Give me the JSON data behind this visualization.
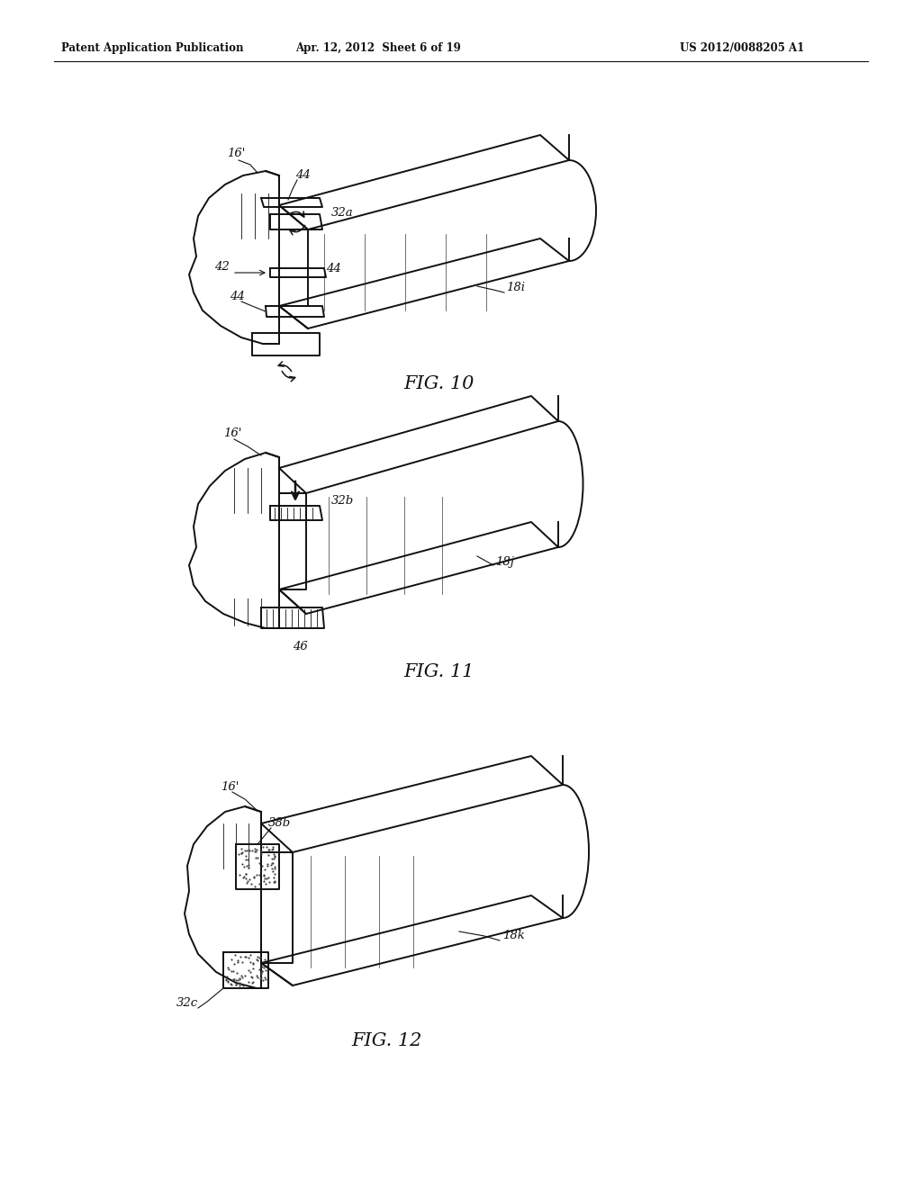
{
  "background_color": "#ffffff",
  "page_width": 10.24,
  "page_height": 13.2,
  "header_left": "Patent Application Publication",
  "header_center": "Apr. 12, 2012  Sheet 6 of 19",
  "header_right": "US 2012/0088205 A1",
  "fig10_label": "FIG. 10",
  "fig11_label": "FIG. 11",
  "fig12_label": "FIG. 12"
}
